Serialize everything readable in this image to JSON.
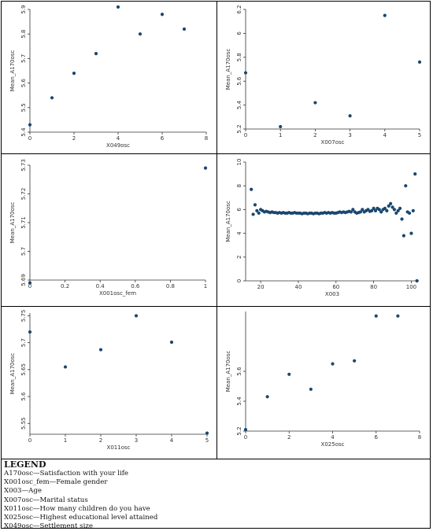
{
  "chart_data": [
    {
      "type": "scatter",
      "xlabel": "X049osc",
      "ylabel": "Mean_A170osc",
      "xlim": [
        0,
        8
      ],
      "ylim": [
        5.4,
        5.9
      ],
      "xticks": [
        "0",
        "2",
        "4",
        "6",
        "8"
      ],
      "yticks": [
        "5.4",
        "5.5",
        "5.6",
        "5.7",
        "5.8",
        "5.9"
      ],
      "x": [
        0,
        1,
        2,
        3,
        4,
        5,
        6,
        7
      ],
      "y": [
        5.43,
        5.54,
        5.64,
        5.72,
        5.91,
        5.8,
        5.88,
        5.82
      ]
    },
    {
      "type": "scatter",
      "xlabel": "X007osc",
      "ylabel": "Mean_A170osc",
      "xlim": [
        0,
        5
      ],
      "ylim": [
        5.2,
        6.2
      ],
      "xticks": [
        "0",
        "1",
        "2",
        "3",
        "4",
        "5"
      ],
      "yticks": [
        "5.2",
        "5.4",
        "5.6",
        "5.8",
        "6",
        "6.2"
      ],
      "x": [
        0,
        1,
        2,
        3,
        4,
        5
      ],
      "y": [
        5.67,
        5.22,
        5.42,
        5.31,
        6.15,
        5.76
      ]
    },
    {
      "type": "scatter",
      "xlabel": "X001osc_fem",
      "ylabel": "Mean_A170osc",
      "xlim": [
        0,
        1
      ],
      "ylim": [
        5.69,
        5.73
      ],
      "xticks": [
        "0",
        "0.2",
        "0.4",
        "0.6",
        "0.8",
        "1"
      ],
      "yticks": [
        "5.69",
        "5.7",
        "5.71",
        "5.72",
        "5.73"
      ],
      "x": [
        0,
        1
      ],
      "y": [
        5.689,
        5.729
      ]
    },
    {
      "type": "scatter",
      "xlabel": "X003",
      "ylabel": "Mean_A170osc",
      "xlim": [
        12,
        104
      ],
      "ylim": [
        0,
        10
      ],
      "xticks": [
        "20",
        "40",
        "60",
        "80",
        "100"
      ],
      "yticks": [
        "0",
        "2",
        "4",
        "6",
        "8",
        "10"
      ],
      "x": [
        15,
        16,
        17,
        18,
        19,
        20,
        21,
        22,
        23,
        24,
        25,
        26,
        27,
        28,
        29,
        30,
        31,
        32,
        33,
        34,
        35,
        36,
        37,
        38,
        39,
        40,
        41,
        42,
        43,
        44,
        45,
        46,
        47,
        48,
        49,
        50,
        51,
        52,
        53,
        54,
        55,
        56,
        57,
        58,
        59,
        60,
        61,
        62,
        63,
        64,
        65,
        66,
        67,
        68,
        69,
        70,
        71,
        72,
        73,
        74,
        75,
        76,
        77,
        78,
        79,
        80,
        81,
        82,
        83,
        84,
        85,
        86,
        87,
        88,
        89,
        90,
        91,
        92,
        93,
        94,
        95,
        96,
        97,
        98,
        99,
        100,
        101,
        102,
        103
      ],
      "y": [
        7.7,
        5.6,
        6.4,
        5.9,
        5.7,
        6.0,
        5.9,
        5.8,
        5.85,
        5.8,
        5.75,
        5.8,
        5.75,
        5.75,
        5.7,
        5.75,
        5.7,
        5.75,
        5.7,
        5.7,
        5.75,
        5.7,
        5.7,
        5.75,
        5.7,
        5.7,
        5.7,
        5.65,
        5.7,
        5.7,
        5.65,
        5.7,
        5.7,
        5.65,
        5.7,
        5.7,
        5.65,
        5.7,
        5.7,
        5.75,
        5.7,
        5.75,
        5.7,
        5.75,
        5.7,
        5.7,
        5.75,
        5.8,
        5.75,
        5.8,
        5.75,
        5.8,
        5.85,
        5.8,
        6.0,
        5.8,
        5.7,
        5.75,
        5.8,
        6.0,
        5.8,
        5.9,
        6.0,
        5.85,
        5.9,
        6.1,
        5.9,
        6.1,
        6.0,
        5.8,
        6.0,
        6.1,
        5.9,
        6.3,
        6.5,
        6.2,
        6.0,
        5.7,
        5.9,
        6.1,
        5.2,
        3.8,
        8.0,
        5.8,
        5.7,
        4.0,
        5.9,
        9.0,
        0.0
      ]
    },
    {
      "type": "scatter",
      "xlabel": "X011osc",
      "ylabel": "Mean_A170osc",
      "xlim": [
        0,
        5
      ],
      "ylim": [
        5.53,
        5.755
      ],
      "xticks": [
        "0",
        "1",
        "2",
        "3",
        "4",
        "5"
      ],
      "yticks": [
        "5.55",
        "5.6",
        "5.65",
        "5.7",
        "5.75"
      ],
      "x": [
        0,
        1,
        2,
        3,
        4,
        5
      ],
      "y": [
        5.72,
        5.655,
        5.687,
        5.75,
        5.701,
        5.532
      ]
    },
    {
      "type": "scatter",
      "xlabel": "X025osc",
      "ylabel": "Mean_A170osc",
      "xlim": [
        0,
        8
      ],
      "ylim": [
        5.2,
        6.0
      ],
      "xticks": [
        "0",
        "2",
        "4",
        "6",
        "8"
      ],
      "yticks": [
        "5.2",
        "5.4",
        "5.6"
      ],
      "x": [
        0,
        1,
        2,
        3,
        4,
        5,
        6,
        7
      ],
      "y": [
        5.21,
        5.43,
        5.58,
        5.48,
        5.65,
        5.67,
        5.97,
        5.97
      ]
    }
  ],
  "legend": {
    "title": "LEGEND",
    "items": [
      "A170osc—Satisfaction with your life",
      "X001osc_fem—Female gender",
      "X003—Age",
      "X007osc—Marital status",
      "X011osc—How many children do you have",
      "X025osc—Highest educational level attained",
      "X049osc—Settlement size"
    ]
  },
  "colors": {
    "marker": "#1a476f",
    "axis": "#333333",
    "border": "#000000"
  }
}
